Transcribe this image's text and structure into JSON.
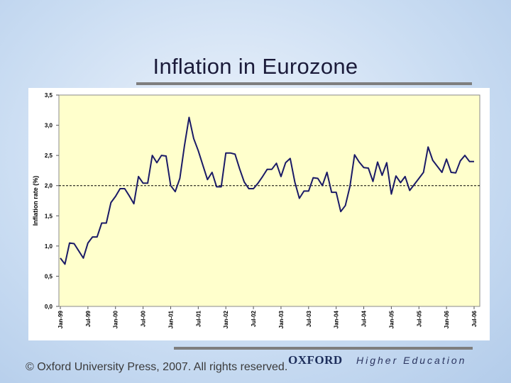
{
  "slide": {
    "title": "Inflation in Eurozone",
    "copyright": "© Oxford University Press, 2007. All rights reserved.",
    "publisher": "OXFORD",
    "tagline": "Higher Education"
  },
  "colors": {
    "plot_bg": "#ffffcc",
    "line": "#1a1a66",
    "reference_line": "#000000"
  },
  "chart_data": {
    "type": "line",
    "title": "",
    "xlabel": "",
    "ylabel": "Inflation rate (%)",
    "ylim": [
      0,
      3.5
    ],
    "yticks": [
      0,
      0.5,
      1.0,
      1.5,
      2.0,
      2.5,
      3.0,
      3.5
    ],
    "ytick_labels": [
      "0,0",
      "0,5",
      "1,0",
      "1,5",
      "2,0",
      "2,5",
      "3,0",
      "3,5"
    ],
    "xtick_labels": [
      "Jan-99",
      "Jul-99",
      "Jan-00",
      "Jul-00",
      "Jan-01",
      "Jul-01",
      "Jan-02",
      "Jul-02",
      "Jan-03",
      "Jul-03",
      "Jan-04",
      "Jul-04",
      "Jan-05",
      "Jul-05",
      "Jan-06",
      "Jul-06"
    ],
    "xtick_months": [
      0,
      6,
      12,
      18,
      24,
      30,
      36,
      42,
      48,
      54,
      60,
      66,
      72,
      78,
      84,
      90
    ],
    "reference_line": {
      "value": 2.0,
      "style": "dashed"
    },
    "grid": false,
    "series": [
      {
        "name": "Eurozone inflation",
        "x_start": "Jan-99",
        "values": [
          0.8,
          0.7,
          1.05,
          1.04,
          0.92,
          0.8,
          1.05,
          1.15,
          1.15,
          1.38,
          1.38,
          1.72,
          1.82,
          1.95,
          1.95,
          1.83,
          1.7,
          2.15,
          2.04,
          2.04,
          2.5,
          2.38,
          2.5,
          2.49,
          2.0,
          1.9,
          2.12,
          2.66,
          3.13,
          2.78,
          2.58,
          2.34,
          2.1,
          2.22,
          1.98,
          1.98,
          2.54,
          2.54,
          2.52,
          2.28,
          2.06,
          1.95,
          1.95,
          2.04,
          2.15,
          2.27,
          2.27,
          2.37,
          2.15,
          2.38,
          2.45,
          2.06,
          1.79,
          1.91,
          1.91,
          2.13,
          2.12,
          2.0,
          2.22,
          1.89,
          1.89,
          1.57,
          1.67,
          1.99,
          2.51,
          2.39,
          2.3,
          2.29,
          2.07,
          2.39,
          2.17,
          2.38,
          1.86,
          2.16,
          2.05,
          2.15,
          1.92,
          2.02,
          2.12,
          2.22,
          2.64,
          2.42,
          2.32,
          2.22,
          2.44,
          2.22,
          2.21,
          2.41,
          2.5,
          2.4,
          2.4
        ]
      }
    ]
  }
}
